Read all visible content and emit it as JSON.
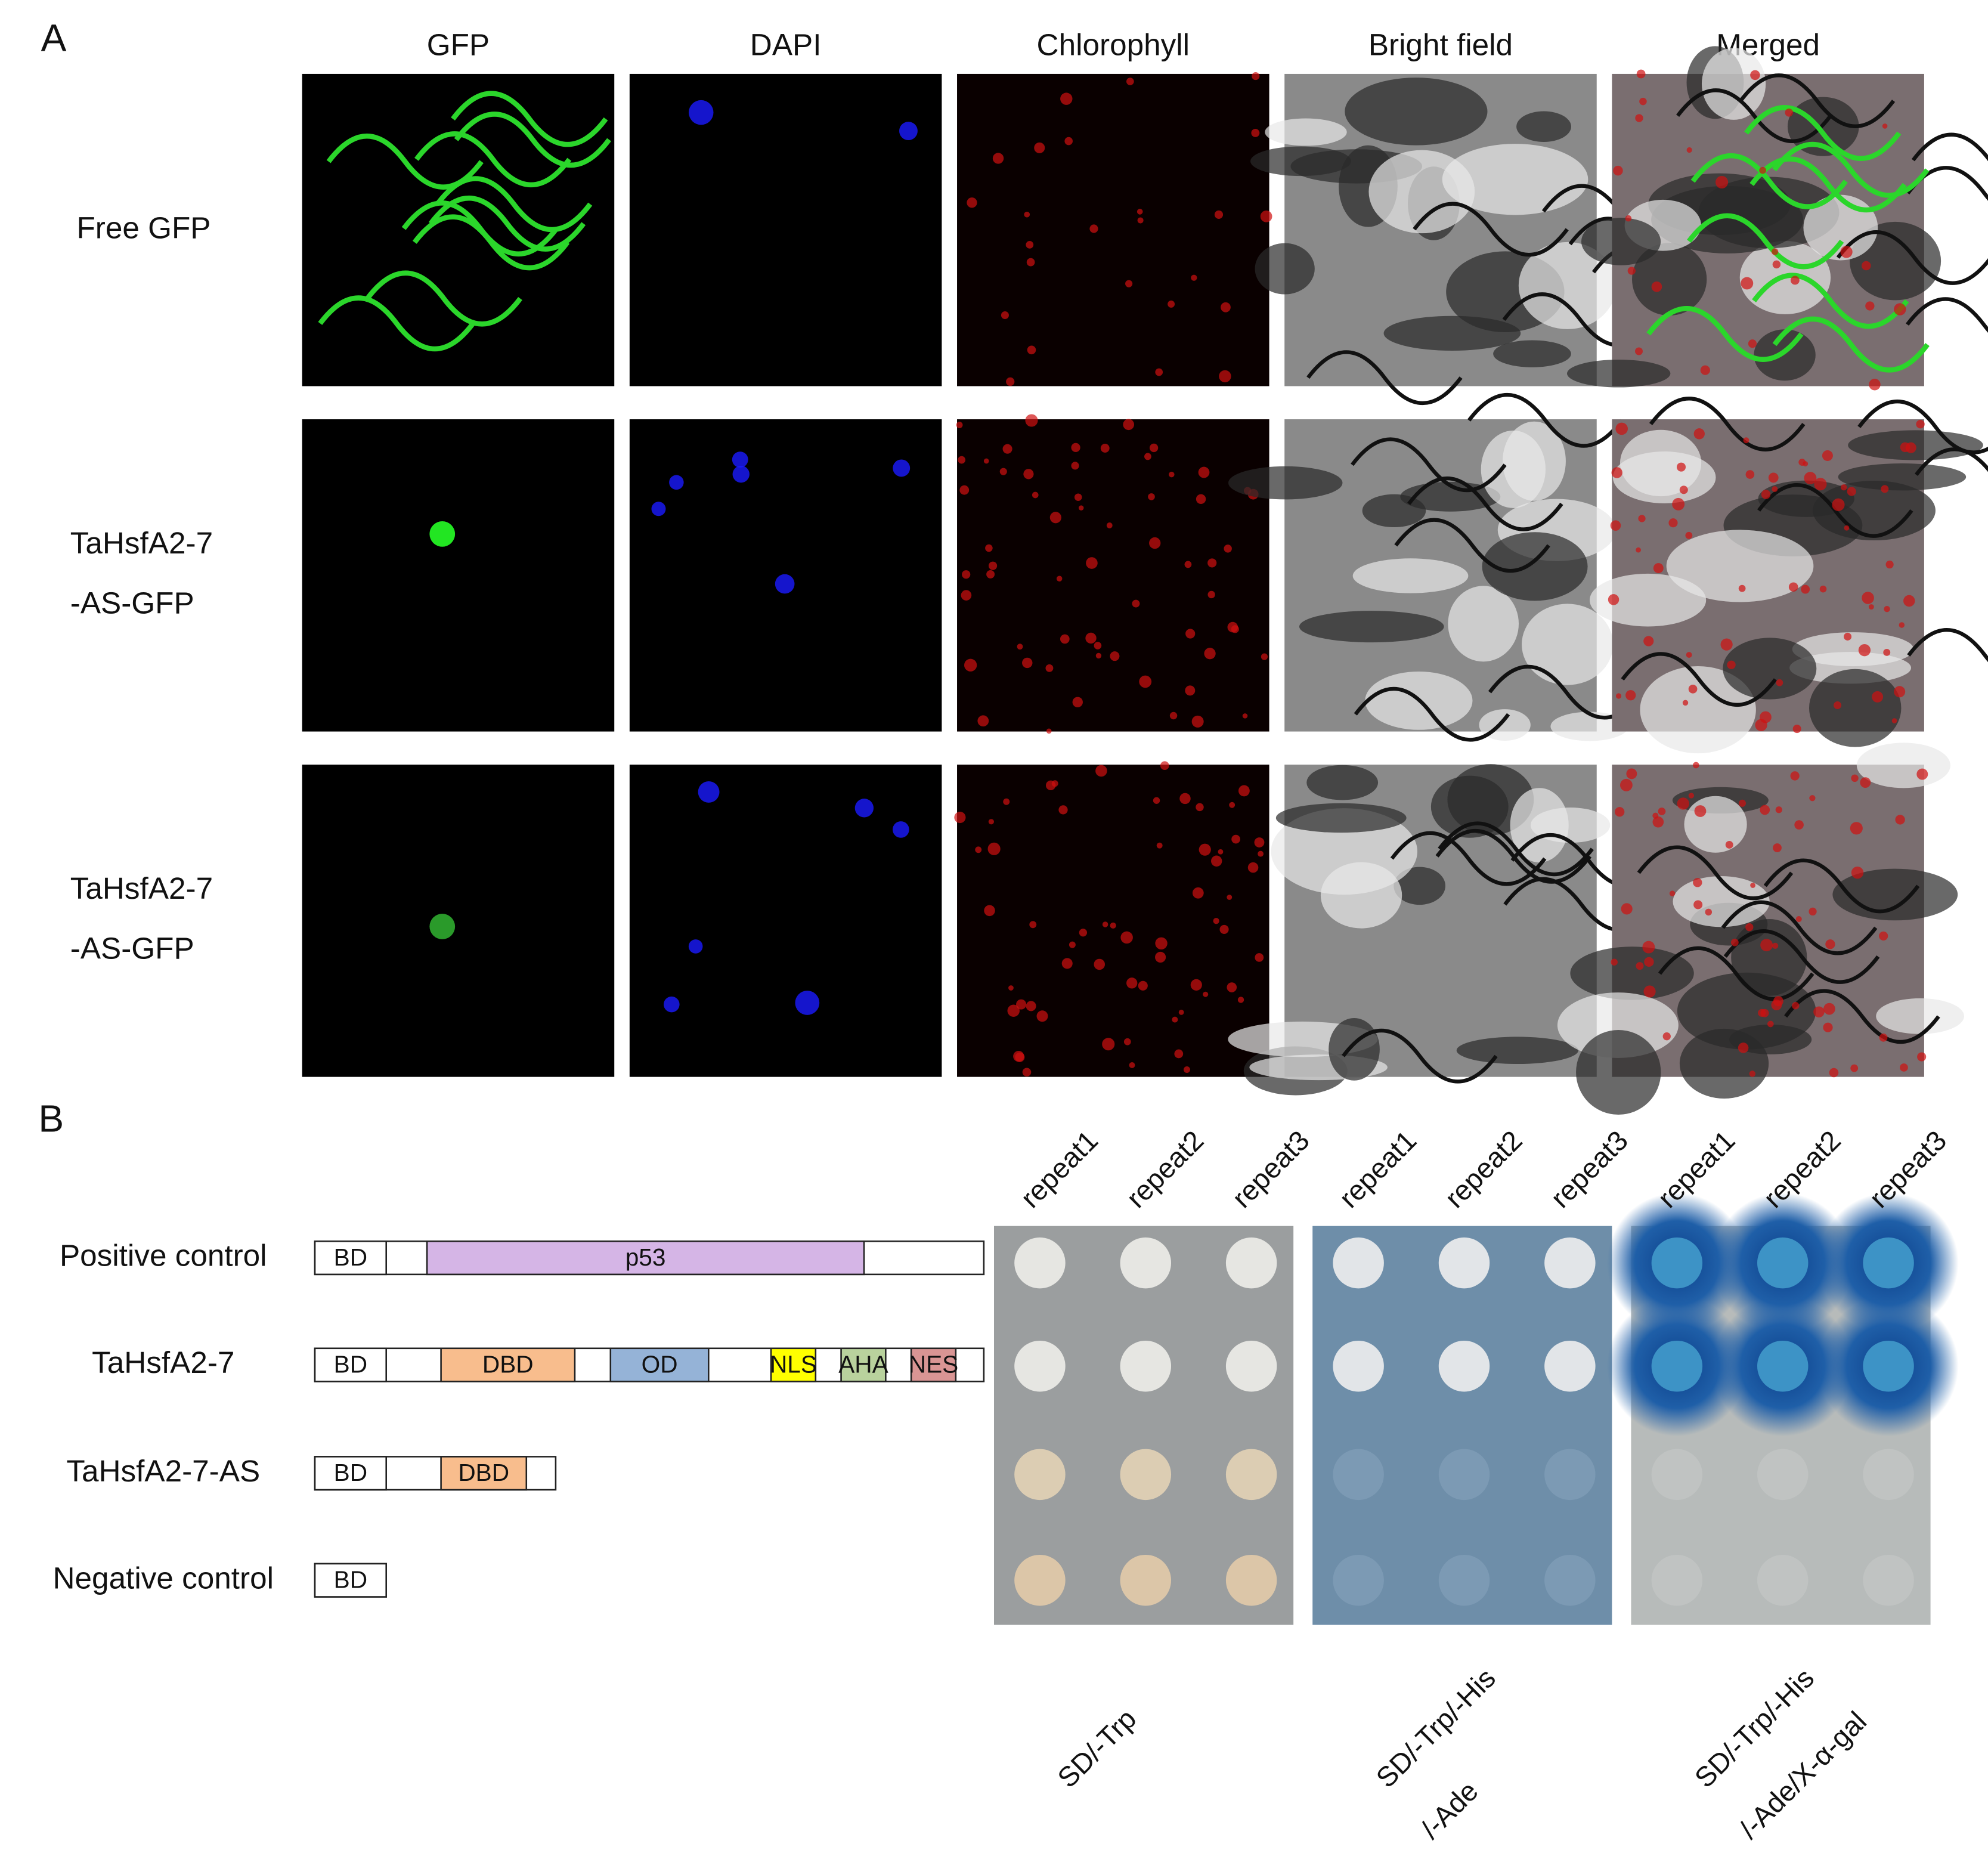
{
  "panel_a": {
    "label": "A",
    "columns": [
      "GFP",
      "DAPI",
      "Chlorophyll",
      "Bright field",
      "Merged"
    ],
    "rows": [
      {
        "lines": [
          "Free GFP"
        ]
      },
      {
        "lines": [
          "TaHsfA2-7",
          "-AS-GFP"
        ]
      },
      {
        "lines": [
          "TaHsfA2-7",
          "-AS-GFP"
        ]
      }
    ]
  },
  "panel_b": {
    "label": "B",
    "constructs": [
      {
        "label": "Positive control",
        "domains": [
          "BD",
          "p53"
        ]
      },
      {
        "label": "TaHsfA2-7",
        "domains": [
          "BD",
          "DBD",
          "OD",
          "NLS",
          "AHA",
          "NES"
        ]
      },
      {
        "label": "TaHsfA2-7-AS",
        "domains": [
          "BD",
          "DBD"
        ]
      },
      {
        "label": "Negative control",
        "domains": [
          "BD"
        ]
      }
    ],
    "repeats": [
      "repeat1",
      "repeat2",
      "repeat3"
    ],
    "plates": [
      {
        "lines": [
          "SD/-Trp"
        ]
      },
      {
        "lines": [
          "SD/-Trp/-His",
          "/-Ade"
        ]
      },
      {
        "lines": [
          "SD/-Trp/-His",
          "/-Ade/X-α-gal"
        ]
      }
    ]
  }
}
